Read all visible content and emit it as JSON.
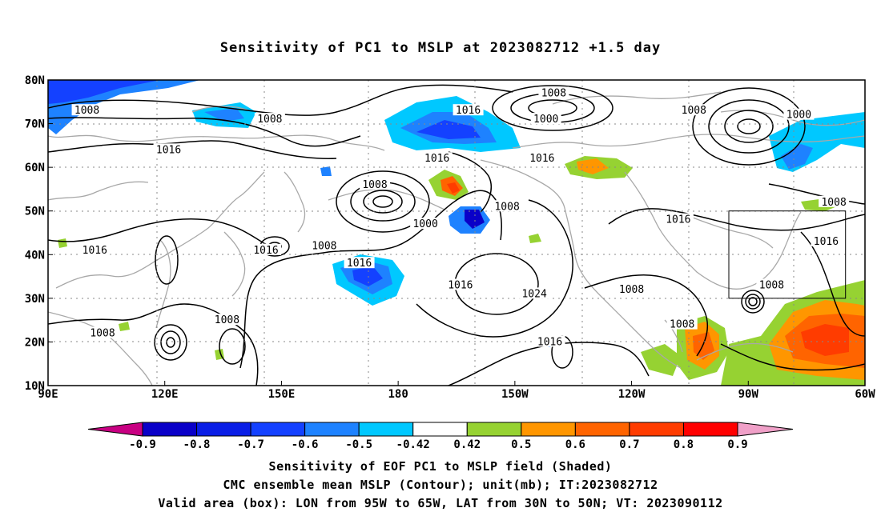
{
  "title": "Sensitivity of PC1 to MSLP at 2023082712 +1.5 day",
  "axes": {
    "lat_ticks": [
      "80N",
      "70N",
      "60N",
      "50N",
      "40N",
      "30N",
      "20N",
      "10N"
    ],
    "lon_ticks": [
      "90E",
      "120E",
      "150E",
      "180",
      "150W",
      "120W",
      "90W",
      "60W"
    ],
    "lat_range": [
      10,
      80
    ],
    "lon_range_east": [
      90,
      300
    ],
    "grid": "dotted"
  },
  "colorbar": {
    "labels": [
      "-0.9",
      "-0.8",
      "-0.7",
      "-0.6",
      "-0.5",
      "-0.42",
      "0.42",
      "0.5",
      "0.6",
      "0.7",
      "0.8",
      "0.9"
    ],
    "colors": [
      "#c80082",
      "#0a00c8",
      "#0a1ee6",
      "#1441ff",
      "#1e82ff",
      "#00c8ff",
      "#ffffff",
      "#96d232",
      "#ff9600",
      "#ff6400",
      "#ff3c00",
      "#ff0000",
      "#f0a0c8"
    ]
  },
  "contour_labels": [
    {
      "text": "1008",
      "lon": 100,
      "lat": 73
    },
    {
      "text": "1008",
      "lon": 147,
      "lat": 71
    },
    {
      "text": "1016",
      "lon": 121,
      "lat": 64
    },
    {
      "text": "1016",
      "lon": 198,
      "lat": 73
    },
    {
      "text": "1008",
      "lon": 220,
      "lat": 77
    },
    {
      "text": "1000",
      "lon": 218,
      "lat": 71
    },
    {
      "text": "1008",
      "lon": 256,
      "lat": 73
    },
    {
      "text": "1000",
      "lon": 283,
      "lat": 72
    },
    {
      "text": "1016",
      "lon": 190,
      "lat": 62
    },
    {
      "text": "1016",
      "lon": 217,
      "lat": 62
    },
    {
      "text": "1008",
      "lon": 174,
      "lat": 56
    },
    {
      "text": "1000",
      "lon": 187,
      "lat": 47
    },
    {
      "text": "1008",
      "lon": 208,
      "lat": 51
    },
    {
      "text": "1016",
      "lon": 102,
      "lat": 41
    },
    {
      "text": "1016",
      "lon": 146,
      "lat": 41
    },
    {
      "text": "1008",
      "lon": 161,
      "lat": 42
    },
    {
      "text": "1016",
      "lon": 170,
      "lat": 38
    },
    {
      "text": "1016",
      "lon": 196,
      "lat": 33
    },
    {
      "text": "1024",
      "lon": 215,
      "lat": 31
    },
    {
      "text": "1008",
      "lon": 240,
      "lat": 32
    },
    {
      "text": "1016",
      "lon": 252,
      "lat": 48
    },
    {
      "text": "1016",
      "lon": 290,
      "lat": 43
    },
    {
      "text": "1008",
      "lon": 276,
      "lat": 33
    },
    {
      "text": "1008",
      "lon": 253,
      "lat": 24
    },
    {
      "text": "1008",
      "lon": 136,
      "lat": 25
    },
    {
      "text": "1008",
      "lon": 104,
      "lat": 22
    },
    {
      "text": "1016",
      "lon": 219,
      "lat": 20
    },
    {
      "text": "1008",
      "lon": 292,
      "lat": 52
    }
  ],
  "valid_box": {
    "lon_west": 265,
    "lon_east": 295,
    "lat_south": 30,
    "lat_north": 50
  },
  "captions": [
    "Sensitivity of EOF PC1 to MSLP field (Shaded)",
    "CMC ensemble mean MSLP (Contour); unit(mb); IT:2023082712",
    "Valid area (box): LON from 95W to 65W, LAT from 30N to 50N; VT: 2023090112"
  ]
}
